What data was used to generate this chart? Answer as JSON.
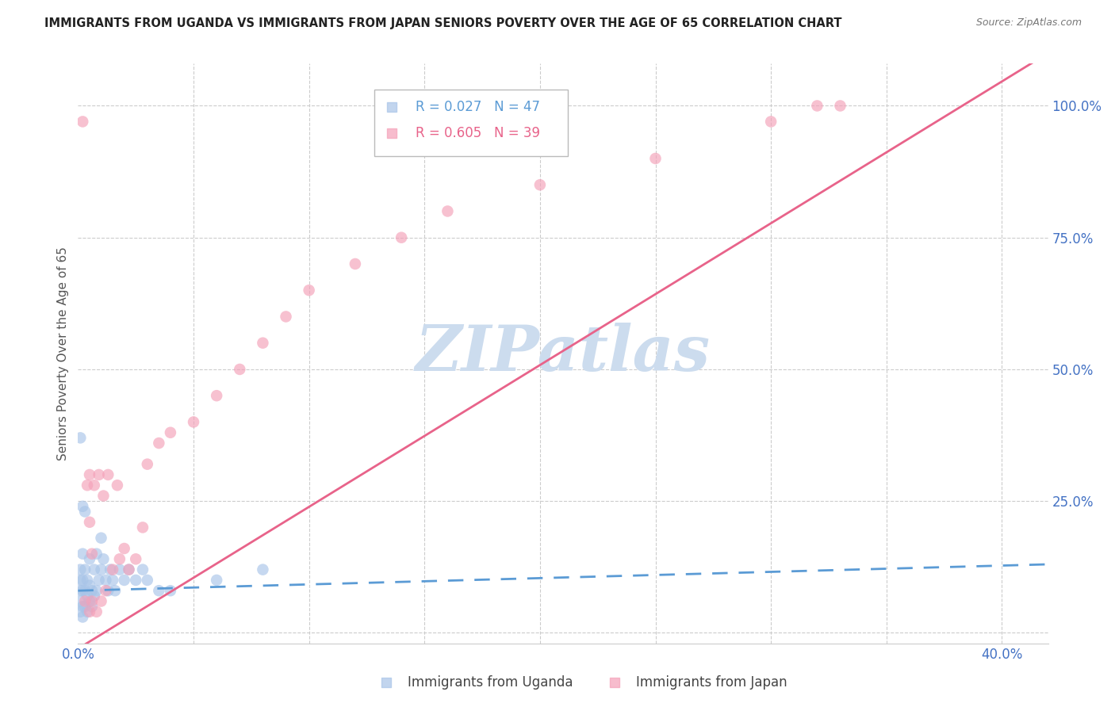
{
  "title": "IMMIGRANTS FROM UGANDA VS IMMIGRANTS FROM JAPAN SENIORS POVERTY OVER THE AGE OF 65 CORRELATION CHART",
  "source": "Source: ZipAtlas.com",
  "ylabel": "Seniors Poverty Over the Age of 65",
  "xlim": [
    0.0,
    0.42
  ],
  "ylim": [
    -0.02,
    1.08
  ],
  "uganda_line_color": "#5b9bd5",
  "japan_line_color": "#e8638a",
  "uganda_fill_color": "#a8c4e8",
  "japan_fill_color": "#f4a0b8",
  "watermark": "ZIPatlas",
  "watermark_color": "#ccdcee",
  "background_color": "#ffffff",
  "grid_color": "#cccccc",
  "legend_R_uganda": "0.027",
  "legend_N_uganda": "47",
  "legend_R_japan": "0.605",
  "legend_N_japan": "39",
  "label_uganda": "Immigrants from Uganda",
  "label_japan": "Immigrants from Japan",
  "uganda_x": [
    0.001,
    0.001,
    0.001,
    0.001,
    0.001,
    0.002,
    0.002,
    0.002,
    0.002,
    0.002,
    0.003,
    0.003,
    0.003,
    0.004,
    0.004,
    0.004,
    0.005,
    0.005,
    0.005,
    0.006,
    0.006,
    0.007,
    0.007,
    0.008,
    0.008,
    0.009,
    0.01,
    0.01,
    0.011,
    0.012,
    0.013,
    0.014,
    0.015,
    0.016,
    0.018,
    0.02,
    0.022,
    0.025,
    0.028,
    0.03,
    0.035,
    0.04,
    0.06,
    0.08,
    0.001,
    0.002,
    0.003
  ],
  "uganda_y": [
    0.04,
    0.06,
    0.08,
    0.1,
    0.12,
    0.03,
    0.05,
    0.08,
    0.1,
    0.15,
    0.05,
    0.08,
    0.12,
    0.04,
    0.07,
    0.1,
    0.06,
    0.09,
    0.14,
    0.05,
    0.08,
    0.07,
    0.12,
    0.08,
    0.15,
    0.1,
    0.12,
    0.18,
    0.14,
    0.1,
    0.08,
    0.12,
    0.1,
    0.08,
    0.12,
    0.1,
    0.12,
    0.1,
    0.12,
    0.1,
    0.08,
    0.08,
    0.1,
    0.12,
    0.37,
    0.24,
    0.23
  ],
  "japan_x": [
    0.002,
    0.003,
    0.004,
    0.005,
    0.005,
    0.006,
    0.007,
    0.008,
    0.009,
    0.01,
    0.011,
    0.012,
    0.013,
    0.015,
    0.017,
    0.018,
    0.02,
    0.022,
    0.025,
    0.028,
    0.03,
    0.035,
    0.04,
    0.05,
    0.06,
    0.07,
    0.08,
    0.09,
    0.1,
    0.12,
    0.14,
    0.16,
    0.2,
    0.25,
    0.3,
    0.32,
    0.33,
    0.005,
    0.006
  ],
  "japan_y": [
    0.97,
    0.06,
    0.28,
    0.04,
    0.3,
    0.06,
    0.28,
    0.04,
    0.3,
    0.06,
    0.26,
    0.08,
    0.3,
    0.12,
    0.28,
    0.14,
    0.16,
    0.12,
    0.14,
    0.2,
    0.32,
    0.36,
    0.38,
    0.4,
    0.45,
    0.5,
    0.55,
    0.6,
    0.65,
    0.7,
    0.75,
    0.8,
    0.85,
    0.9,
    0.97,
    1.0,
    1.0,
    0.21,
    0.15
  ],
  "uganda_trend_x": [
    0.0,
    0.42
  ],
  "uganda_trend_y": [
    0.08,
    0.13
  ],
  "japan_trend_x": [
    0.0,
    0.42
  ],
  "japan_trend_y": [
    -0.03,
    1.1
  ]
}
